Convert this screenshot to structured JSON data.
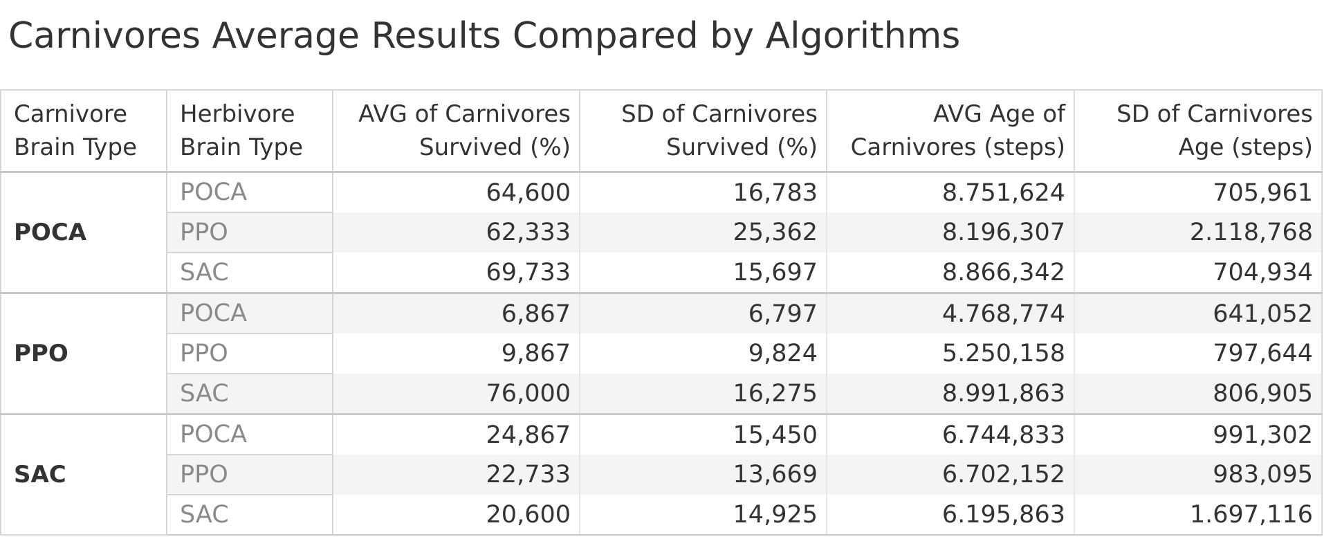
{
  "chart_data": {
    "type": "table",
    "title": "Carnivores Average Results Compared by Algorithms",
    "columns": [
      {
        "label_lines": [
          "Carnivore",
          "Brain Type"
        ],
        "align": "left"
      },
      {
        "label_lines": [
          "Herbivore",
          "Brain Type"
        ],
        "align": "left"
      },
      {
        "label_lines": [
          "AVG of Carnivores",
          "Survived (%)"
        ],
        "align": "right"
      },
      {
        "label_lines": [
          "SD of Carnivores",
          "Survived (%)"
        ],
        "align": "right"
      },
      {
        "label_lines": [
          "AVG Age of",
          "Carnivores (steps)"
        ],
        "align": "right"
      },
      {
        "label_lines": [
          "SD of Carnivores",
          "Age (steps)"
        ],
        "align": "right"
      }
    ],
    "groups": [
      {
        "name": "POCA",
        "rows": [
          {
            "herbivore": "POCA",
            "values": [
              "64,600",
              "16,783",
              "8.751,624",
              "705,961"
            ]
          },
          {
            "herbivore": "PPO",
            "values": [
              "62,333",
              "25,362",
              "8.196,307",
              "2.118,768"
            ]
          },
          {
            "herbivore": "SAC",
            "values": [
              "69,733",
              "15,697",
              "8.866,342",
              "704,934"
            ]
          }
        ]
      },
      {
        "name": "PPO",
        "rows": [
          {
            "herbivore": "POCA",
            "values": [
              "6,867",
              "6,797",
              "4.768,774",
              "641,052"
            ]
          },
          {
            "herbivore": "PPO",
            "values": [
              "9,867",
              "9,824",
              "5.250,158",
              "797,644"
            ]
          },
          {
            "herbivore": "SAC",
            "values": [
              "76,000",
              "16,275",
              "8.991,863",
              "806,905"
            ]
          }
        ]
      },
      {
        "name": "SAC",
        "rows": [
          {
            "herbivore": "POCA",
            "values": [
              "24,867",
              "15,450",
              "6.744,833",
              "991,302"
            ]
          },
          {
            "herbivore": "PPO",
            "values": [
              "22,733",
              "13,669",
              "6.702,152",
              "983,095"
            ]
          },
          {
            "herbivore": "SAC",
            "values": [
              "20,600",
              "14,925",
              "6.195,863",
              "1.697,116"
            ]
          }
        ]
      }
    ]
  },
  "colors": {
    "text": "#333333",
    "muted_text": "#8a8a8a",
    "row_band": "#f4f4f4",
    "border": "#d7d7d7"
  }
}
